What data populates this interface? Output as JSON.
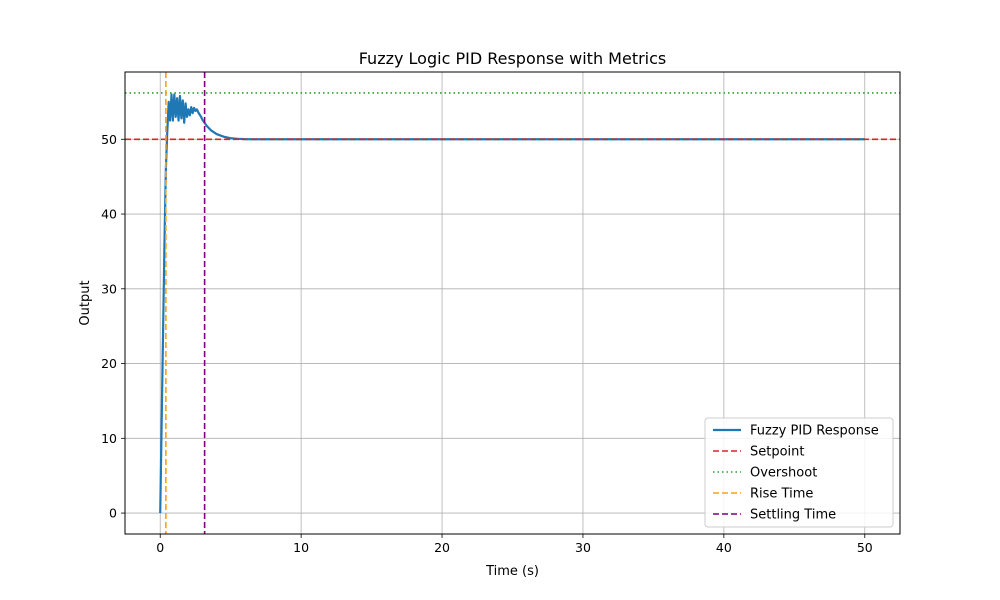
{
  "chart_data": {
    "type": "line",
    "title": "Fuzzy Logic PID Response with Metrics",
    "xlabel": "Time (s)",
    "ylabel": "Output",
    "xlim": [
      -2.5,
      52.5
    ],
    "ylim": [
      -2.8,
      59
    ],
    "xticks": [
      0,
      10,
      20,
      30,
      40,
      50
    ],
    "yticks": [
      0,
      10,
      20,
      30,
      40,
      50
    ],
    "grid": true,
    "legend_position": "lower-right",
    "colors": {
      "response": "#1f77b4",
      "setpoint": "#d62728",
      "overshoot": "#2ca02c",
      "rise_time": "#ff9f1a",
      "settling_time": "#800080"
    },
    "series": [
      {
        "name": "Fuzzy PID Response",
        "style": "solid",
        "x": [
          0,
          0.1,
          0.2,
          0.3,
          0.4,
          0.5,
          0.6,
          0.7,
          0.8,
          0.9,
          1.0,
          1.1,
          1.2,
          1.3,
          1.4,
          1.5,
          1.6,
          1.7,
          1.8,
          1.9,
          2.0,
          2.1,
          2.2,
          2.3,
          2.4,
          2.5,
          2.6,
          2.7,
          2.8,
          2.9,
          3.0,
          3.3,
          3.6,
          4.0,
          4.5,
          5.0,
          5.5,
          6.0,
          7.0,
          8.0,
          10.0,
          15.0,
          20.0,
          30.0,
          40.0,
          50.0
        ],
        "y": [
          0,
          12,
          24,
          36,
          46,
          51,
          55,
          52.5,
          56,
          52.5,
          56,
          53,
          55.5,
          52.5,
          55.8,
          52.8,
          55.2,
          52.2,
          54.8,
          53.0,
          54.0,
          53.2,
          54.3,
          53.5,
          54.2,
          53.8,
          54.0,
          53.6,
          53.3,
          53.0,
          52.6,
          51.8,
          51.2,
          50.7,
          50.35,
          50.15,
          50.06,
          50.02,
          50.0,
          50.0,
          50.0,
          50.0,
          50.0,
          50.0,
          50.0,
          50.0
        ]
      },
      {
        "name": "Setpoint",
        "style": "dashed",
        "orientation": "horizontal",
        "value": 50
      },
      {
        "name": "Overshoot",
        "style": "dotted",
        "orientation": "horizontal",
        "value": 56.2
      },
      {
        "name": "Rise Time",
        "style": "dashed",
        "orientation": "vertical",
        "value": 0.4
      },
      {
        "name": "Settling Time",
        "style": "dashed",
        "orientation": "vertical",
        "value": 3.15
      }
    ]
  }
}
